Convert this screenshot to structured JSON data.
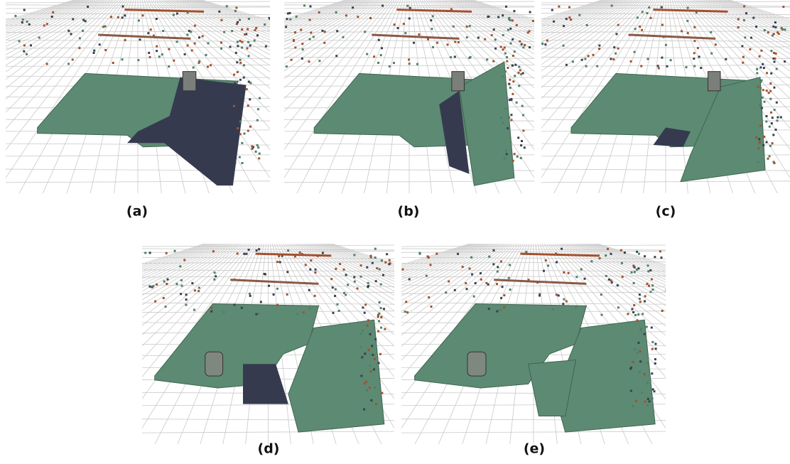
{
  "figure": {
    "panels": [
      {
        "label": "(a)"
      },
      {
        "label": "(b)"
      },
      {
        "label": "(c)"
      },
      {
        "label": "(d)"
      },
      {
        "label": "(e)"
      }
    ]
  }
}
